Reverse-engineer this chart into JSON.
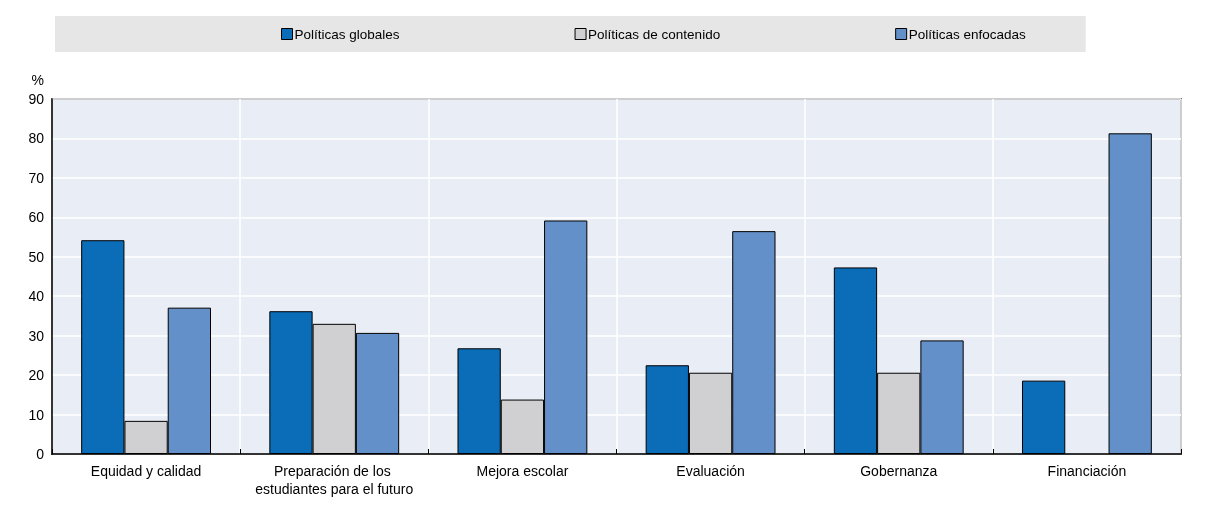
{
  "chart_data": {
    "type": "bar",
    "ylabel": "%",
    "categories": [
      "Equidad y calidad",
      "Preparación de los estudiantes para el futuro",
      "Mejora escolar",
      "Evaluación",
      "Gobernanza",
      "Financiación"
    ],
    "series": [
      {
        "name": "Políticas globales",
        "color": "#0b6db7",
        "values": [
          54.2,
          36.2,
          26.8,
          22.5,
          47.3,
          18.6
        ]
      },
      {
        "name": "Políticas de contenido",
        "color": "#d0d0d2",
        "values": [
          8.4,
          33.0,
          13.8,
          20.6,
          20.6,
          null
        ]
      },
      {
        "name": "Políticas enfocadas",
        "color": "#6490c9",
        "values": [
          37.1,
          30.7,
          59.2,
          56.5,
          28.8,
          81.3
        ]
      }
    ],
    "ylim": [
      0,
      90
    ],
    "yticks": [
      0,
      10,
      20,
      30,
      40,
      50,
      60,
      70,
      80,
      90
    ],
    "grid": true,
    "legend": "top"
  }
}
